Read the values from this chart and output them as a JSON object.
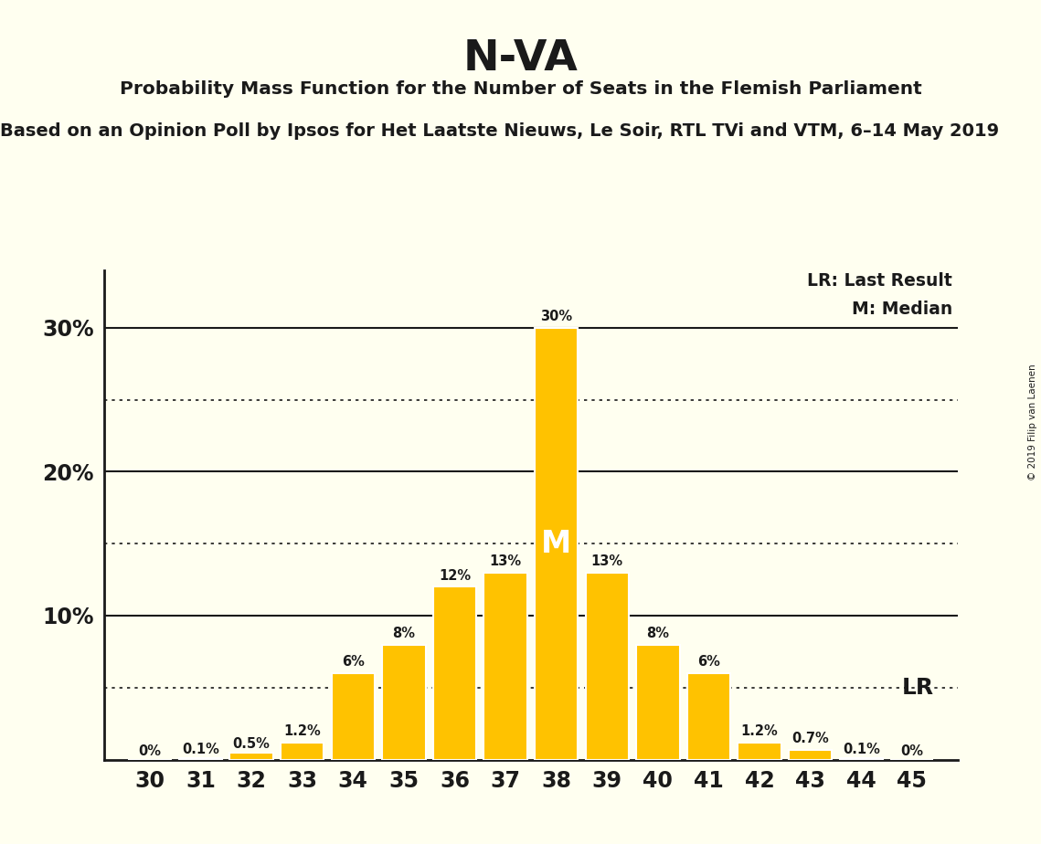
{
  "title": "N-VA",
  "subtitle": "Probability Mass Function for the Number of Seats in the Flemish Parliament",
  "sub_subtitle": "Based on an Opinion Poll by Ipsos for Het Laatste Nieuws, Le Soir, RTL TVi and VTM, 6–14 May 2019",
  "copyright": "© 2019 Filip van Laenen",
  "seats": [
    30,
    31,
    32,
    33,
    34,
    35,
    36,
    37,
    38,
    39,
    40,
    41,
    42,
    43,
    44,
    45
  ],
  "probabilities": [
    0.0,
    0.001,
    0.005,
    0.012,
    0.06,
    0.08,
    0.12,
    0.13,
    0.3,
    0.13,
    0.08,
    0.06,
    0.012,
    0.007,
    0.001,
    0.0
  ],
  "bar_color": "#FFC200",
  "bar_edge_color": "#FFFFFF",
  "background_color": "#FFFFF0",
  "text_color": "#1A1A1A",
  "median_seat": 38,
  "lr_value": 0.05,
  "dotted_lines": [
    0.05,
    0.15,
    0.25
  ],
  "solid_lines": [
    0.1,
    0.2,
    0.3
  ],
  "bar_labels": [
    "0%",
    "0.1%",
    "0.5%",
    "1.2%",
    "6%",
    "8%",
    "12%",
    "13%",
    "30%",
    "13%",
    "8%",
    "6%",
    "1.2%",
    "0.7%",
    "0.1%",
    "0%"
  ]
}
